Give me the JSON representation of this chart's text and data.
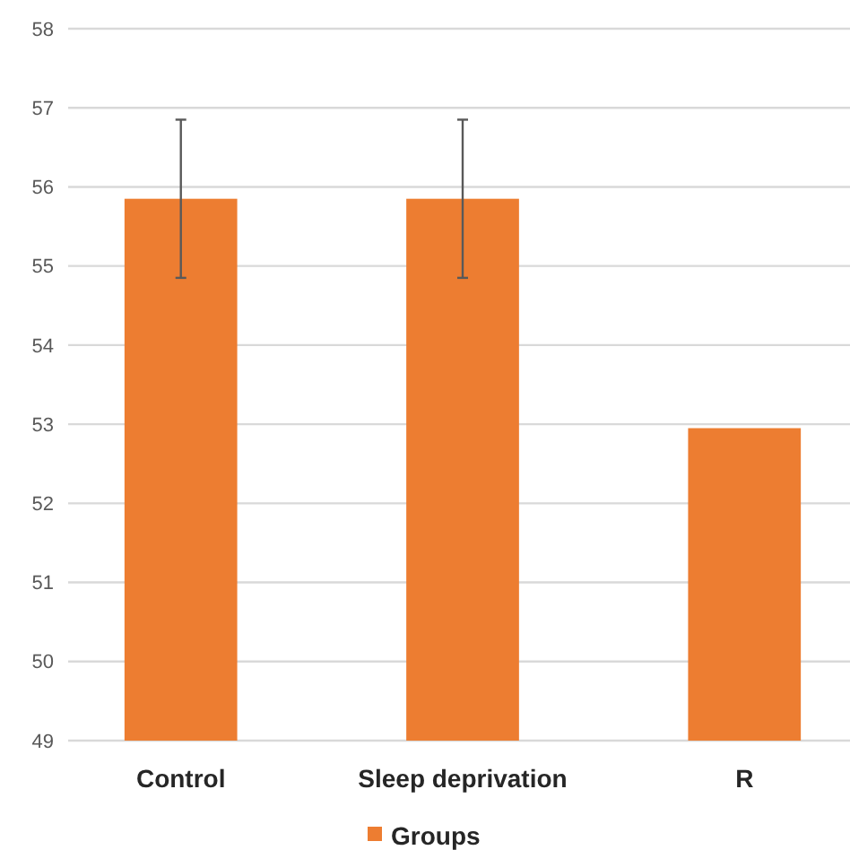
{
  "chart_data": {
    "type": "bar",
    "categories": [
      "Control",
      "Sleep deprivation",
      "R"
    ],
    "series": [
      {
        "name": "Groups",
        "color": "#ed7d31",
        "values": [
          55.85,
          55.85,
          52.95
        ],
        "errors": [
          1,
          1,
          null
        ]
      }
    ],
    "ylim": [
      49,
      58
    ],
    "yticks": [
      49,
      50,
      51,
      52,
      53,
      54,
      55,
      56,
      57,
      58
    ],
    "grid": "y",
    "legend": "bottom"
  }
}
